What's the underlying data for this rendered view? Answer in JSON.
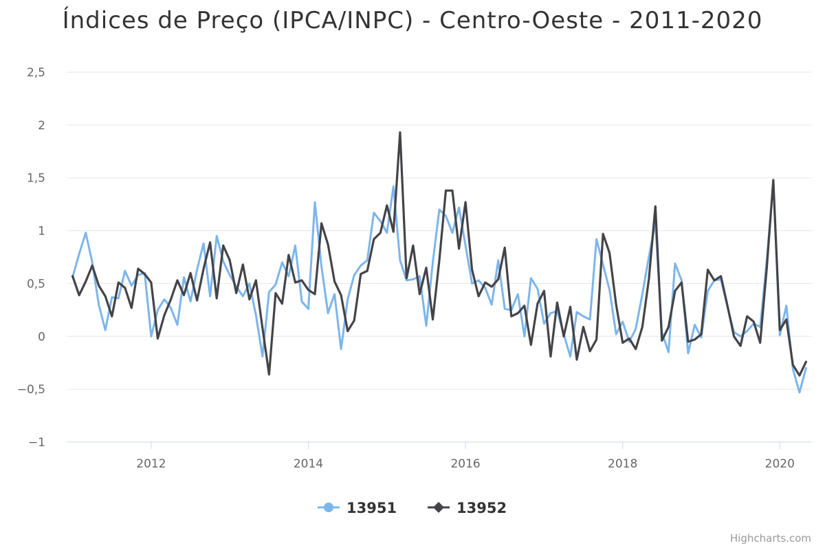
{
  "chart_data": {
    "type": "line",
    "title": "Índices de Preço (IPCA/INPC) - Centro-Oeste - 2011-2020",
    "xlabel": "",
    "ylabel": "",
    "x_start": "2011-01",
    "x_end": "2020-05",
    "x_ticks": [
      "2012",
      "2014",
      "2016",
      "2018",
      "2020"
    ],
    "y_ticks": [
      "2,5",
      "2",
      "1,5",
      "1",
      "0,5",
      "0",
      "−0,5",
      "−1"
    ],
    "ylim": [
      -1,
      2.5
    ],
    "grid": true,
    "legend_position": "bottom-center",
    "series": [
      {
        "name": "13951",
        "color": "#7cb5ec",
        "marker": "circle",
        "values": [
          0.56,
          0.78,
          0.98,
          0.7,
          0.3,
          0.06,
          0.37,
          0.36,
          0.62,
          0.48,
          0.58,
          0.6,
          0.0,
          0.25,
          0.35,
          0.27,
          0.11,
          0.56,
          0.33,
          0.63,
          0.88,
          0.38,
          0.95,
          0.71,
          0.58,
          0.47,
          0.38,
          0.5,
          0.2,
          -0.19,
          0.42,
          0.49,
          0.7,
          0.57,
          0.86,
          0.33,
          0.26,
          1.27,
          0.66,
          0.22,
          0.4,
          -0.12,
          0.35,
          0.58,
          0.67,
          0.72,
          1.17,
          1.09,
          0.98,
          1.42,
          0.72,
          0.53,
          0.54,
          0.57,
          0.1,
          0.7,
          1.2,
          1.14,
          0.98,
          1.22,
          0.86,
          0.5,
          0.53,
          0.46,
          0.3,
          0.72,
          0.26,
          0.25,
          0.4,
          0.0,
          0.55,
          0.45,
          0.12,
          0.22,
          0.24,
          0.02,
          -0.19,
          0.23,
          0.19,
          0.16,
          0.92,
          0.68,
          0.44,
          0.02,
          0.14,
          -0.05,
          0.07,
          0.4,
          0.75,
          1.08,
          0.04,
          -0.15,
          0.69,
          0.53,
          -0.16,
          0.11,
          -0.01,
          0.43,
          0.53,
          0.54,
          0.28,
          0.04,
          0.0,
          0.05,
          0.12,
          0.09,
          0.71,
          1.45,
          0.01,
          0.29,
          -0.31,
          -0.53,
          -0.3
        ]
      },
      {
        "name": "13952",
        "color": "#434348",
        "marker": "diamond",
        "values": [
          0.57,
          0.39,
          0.52,
          0.67,
          0.48,
          0.38,
          0.19,
          0.51,
          0.46,
          0.27,
          0.64,
          0.59,
          0.51,
          -0.02,
          0.2,
          0.35,
          0.53,
          0.39,
          0.6,
          0.34,
          0.64,
          0.89,
          0.36,
          0.86,
          0.72,
          0.41,
          0.68,
          0.35,
          0.53,
          0.08,
          -0.36,
          0.41,
          0.31,
          0.77,
          0.51,
          0.53,
          0.44,
          0.4,
          1.07,
          0.87,
          0.52,
          0.39,
          0.05,
          0.15,
          0.59,
          0.62,
          0.92,
          0.98,
          1.24,
          0.99,
          1.93,
          0.55,
          0.86,
          0.4,
          0.65,
          0.16,
          0.72,
          1.38,
          1.38,
          0.83,
          1.27,
          0.63,
          0.38,
          0.51,
          0.47,
          0.54,
          0.84,
          0.19,
          0.22,
          0.29,
          -0.08,
          0.31,
          0.43,
          -0.19,
          0.32,
          0.0,
          0.28,
          -0.22,
          0.09,
          -0.14,
          -0.03,
          0.97,
          0.79,
          0.3,
          -0.06,
          -0.02,
          -0.12,
          0.09,
          0.54,
          1.23,
          -0.04,
          0.09,
          0.43,
          0.51,
          -0.05,
          -0.03,
          0.02,
          0.63,
          0.53,
          0.57,
          0.29,
          0.0,
          -0.09,
          0.19,
          0.14,
          -0.06,
          0.64,
          1.48,
          0.06,
          0.16,
          -0.27,
          -0.37,
          -0.24
        ]
      }
    ],
    "credits": "Highcharts.com"
  }
}
